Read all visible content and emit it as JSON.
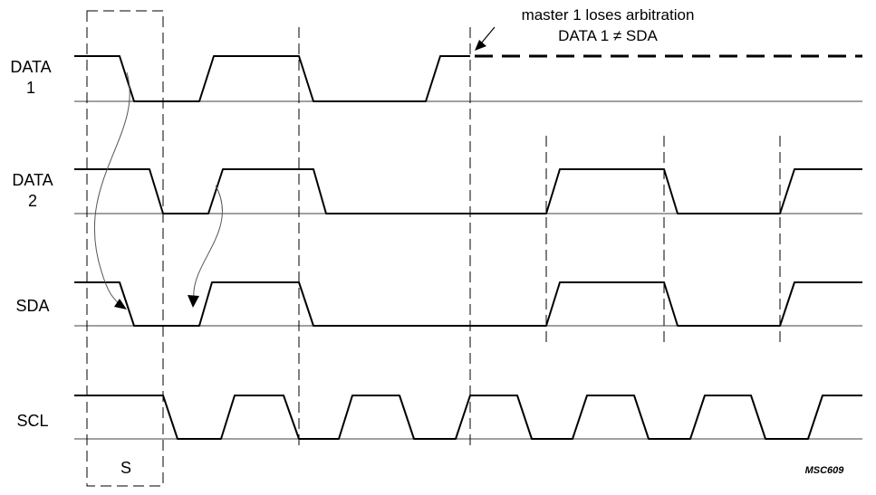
{
  "signals": [
    {
      "id": "data1",
      "label_line1": "DATA",
      "label_line2": "1"
    },
    {
      "id": "data2",
      "label_line1": "DATA",
      "label_line2": "2"
    },
    {
      "id": "sda",
      "label_line1": "SDA",
      "label_line2": ""
    },
    {
      "id": "scl",
      "label_line1": "SCL",
      "label_line2": ""
    }
  ],
  "annotation": {
    "line1": "master 1 loses arbitration",
    "line2": "DATA 1 ≠ SDA"
  },
  "start_label": "S",
  "figure_code": "MSC609"
}
